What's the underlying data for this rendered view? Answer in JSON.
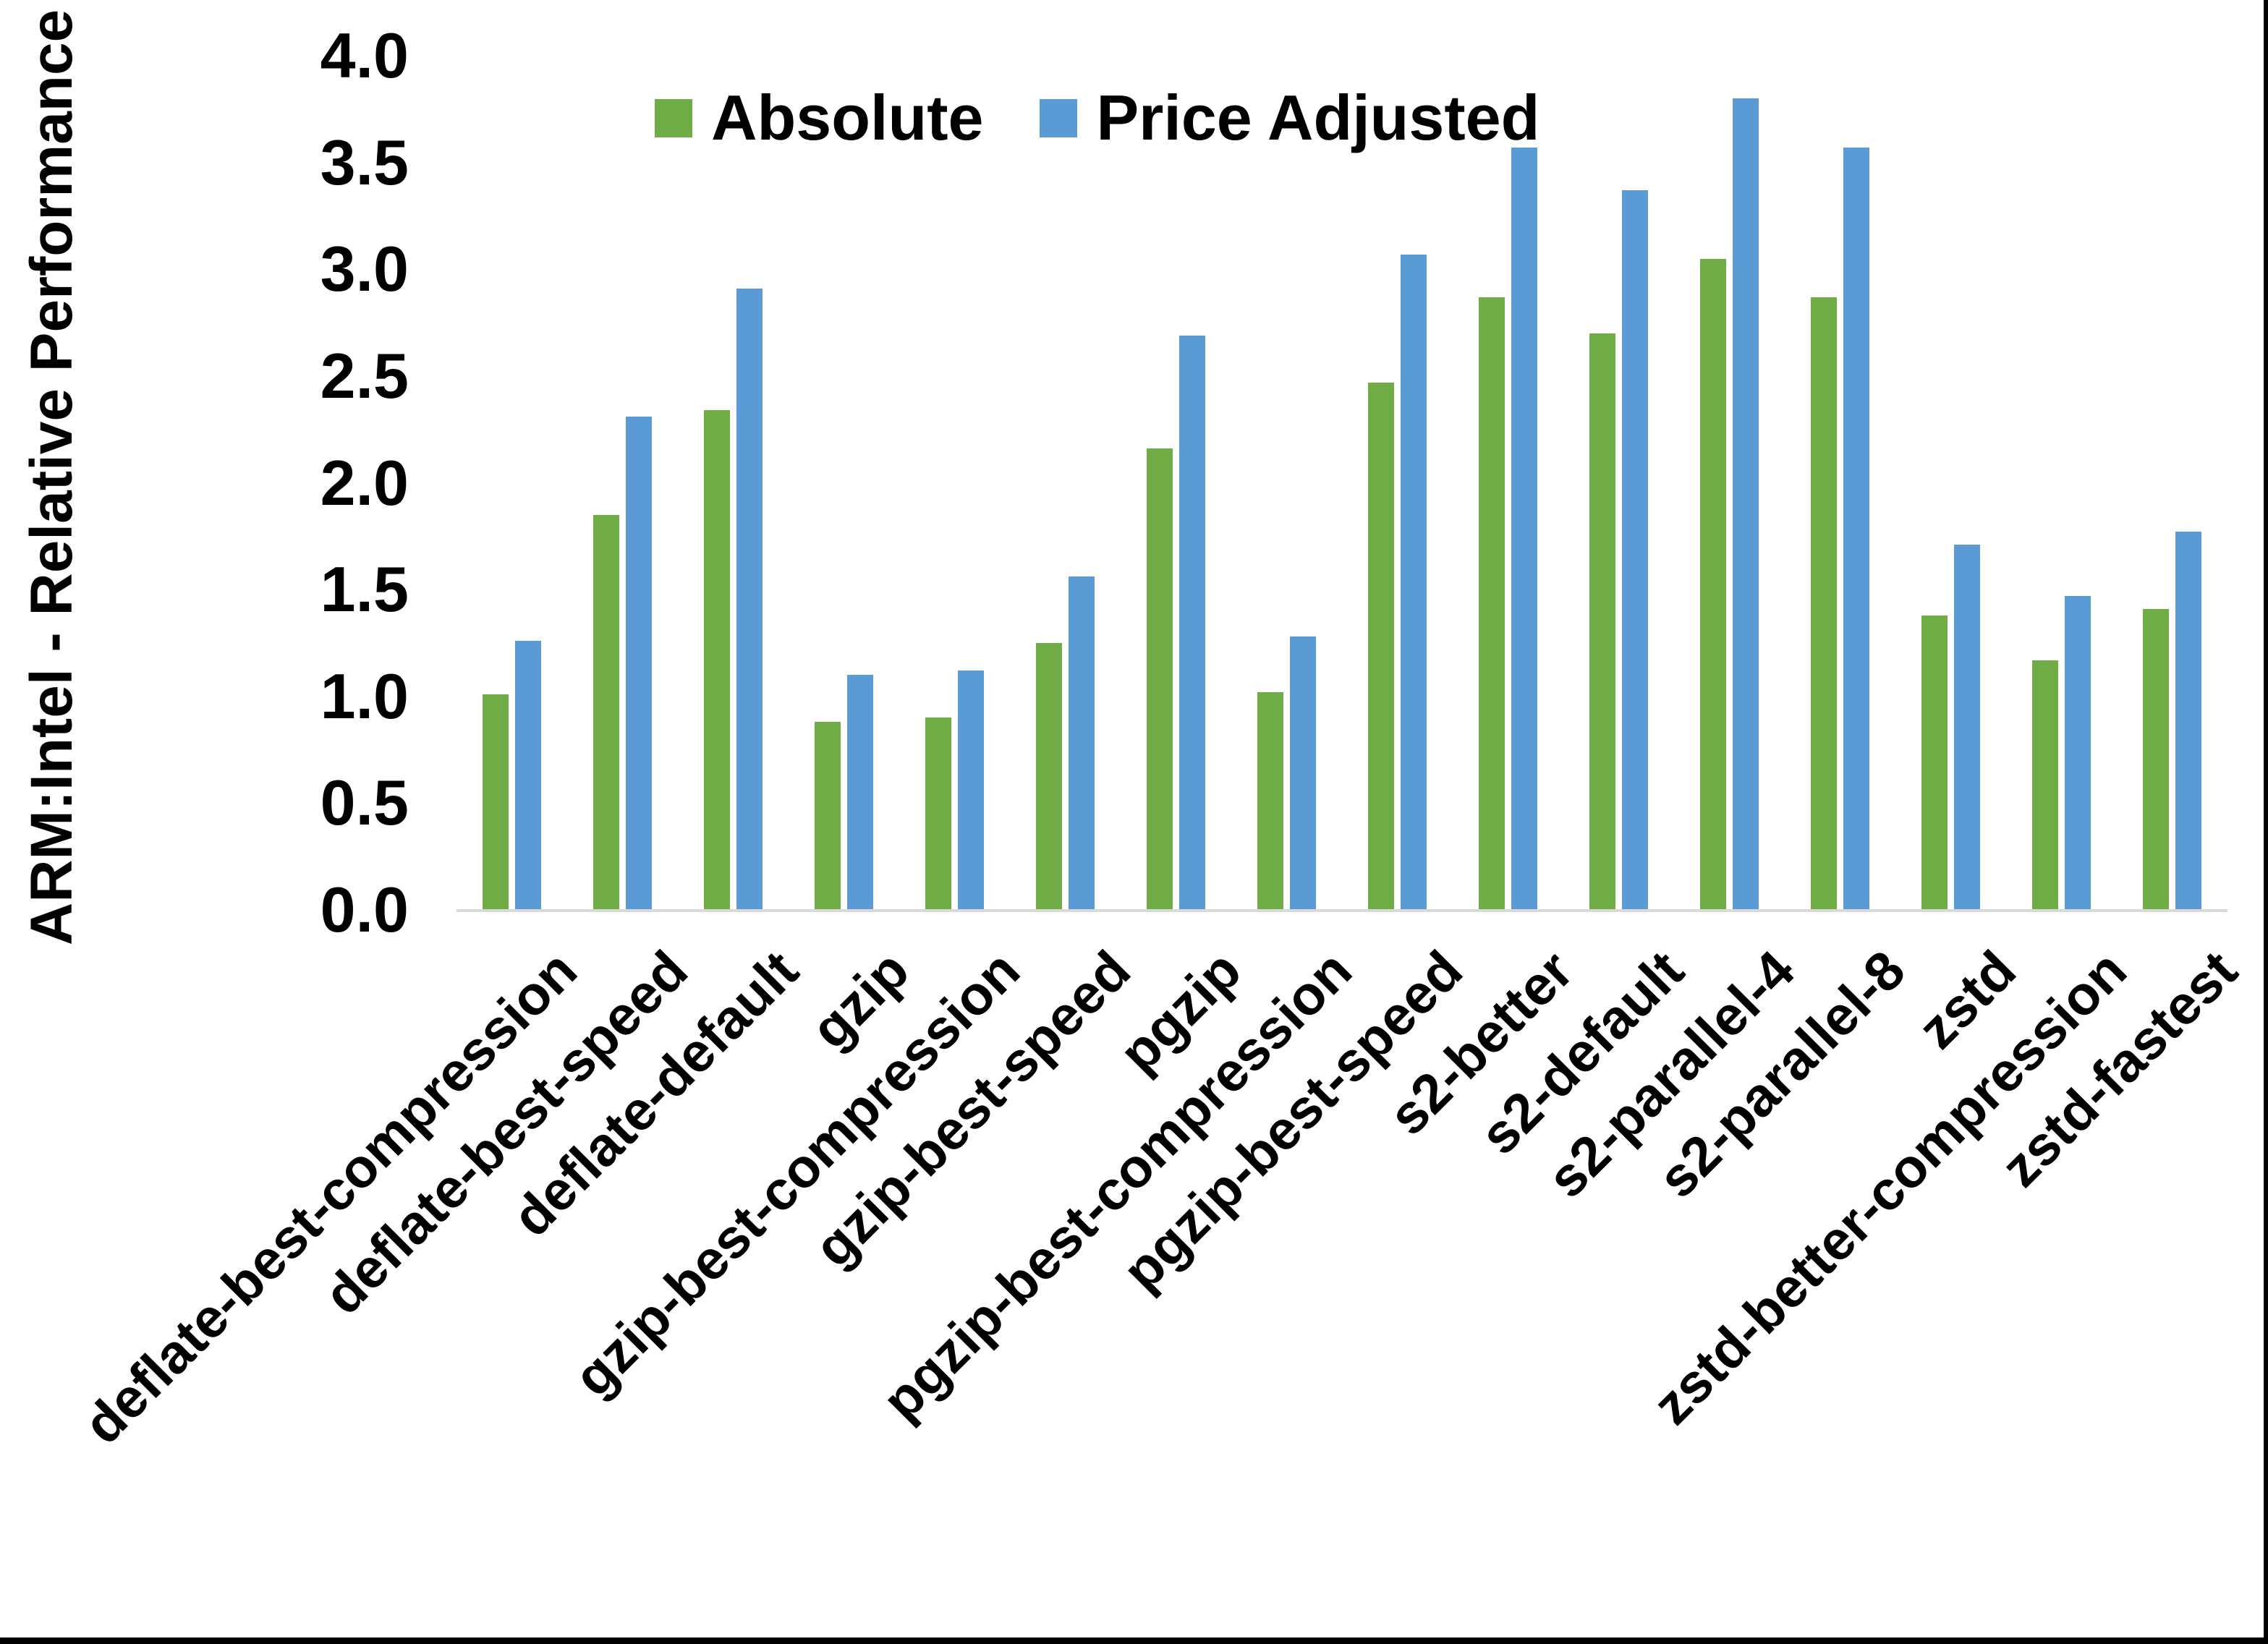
{
  "chart_data": {
    "type": "bar",
    "title": "",
    "ylabel": "ARM:Intel - Relative Performance",
    "xlabel": "",
    "ylim": [
      0.0,
      4.0
    ],
    "yticks": [
      "0.0",
      "0.5",
      "1.0",
      "1.5",
      "2.0",
      "2.5",
      "3.0",
      "3.5",
      "4.0"
    ],
    "grid": false,
    "legend_position": "top-center",
    "axis_line_color": "#D9D9D9",
    "text_color": "#000000",
    "background_color": "#FFFFFF",
    "frame_edge_color": "#000000",
    "categories": [
      "deflate-best-compression",
      "deflate-best-speed",
      "deflate-default",
      "gzip",
      "gzip-best-compression",
      "gzip-best-speed",
      "pgzip",
      "pgzip-best-compression",
      "pgzip-best-speed",
      "s2-better",
      "s2-default",
      "s2-parallel-4",
      "s2-parallel-8",
      "zstd",
      "zstd-better-compression",
      "zstd-fastest"
    ],
    "series": [
      {
        "name": "Absolute",
        "color": "#70AD47",
        "values": [
          1.01,
          1.85,
          2.34,
          0.88,
          0.9,
          1.25,
          2.16,
          1.02,
          2.47,
          2.87,
          2.7,
          3.05,
          2.87,
          1.38,
          1.17,
          1.41
        ]
      },
      {
        "name": "Price Adjusted",
        "color": "#5B9BD5",
        "values": [
          1.26,
          2.31,
          2.91,
          1.1,
          1.12,
          1.56,
          2.69,
          1.28,
          3.07,
          3.57,
          3.37,
          3.8,
          3.57,
          1.71,
          1.47,
          1.77
        ]
      }
    ]
  }
}
